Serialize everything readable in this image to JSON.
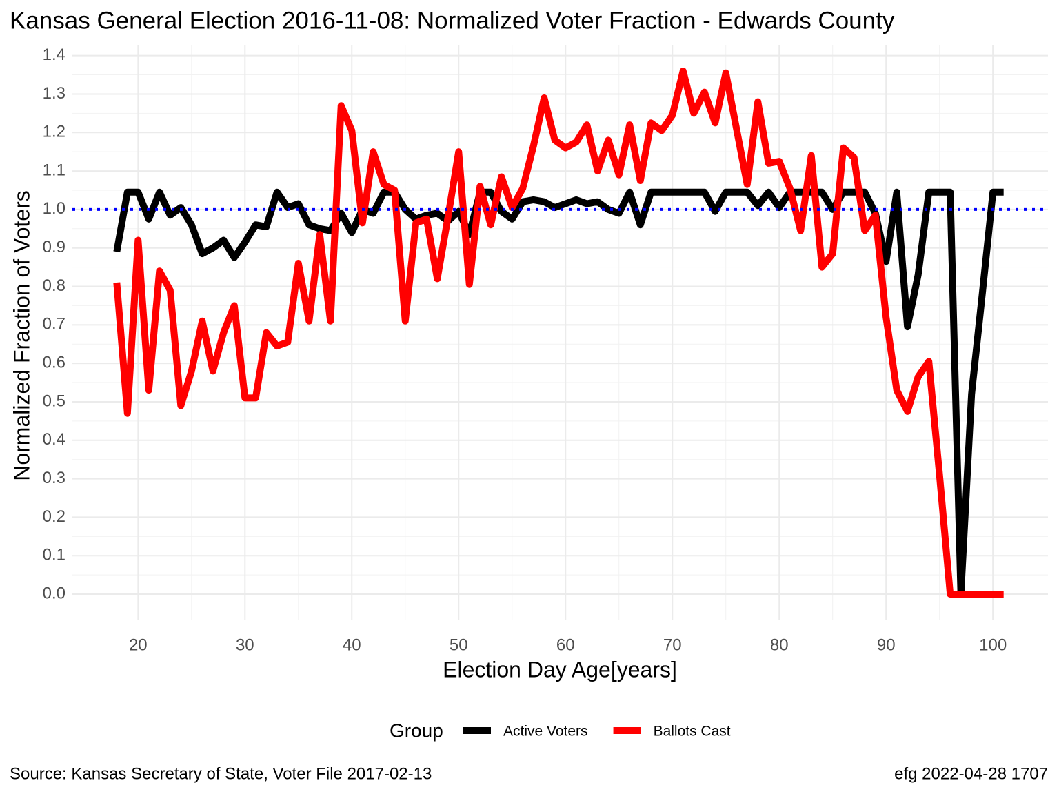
{
  "chart_data": {
    "type": "line",
    "title": "Kansas General Election 2016-11-08:  Normalized Voter Fraction - Edwards County",
    "x_label": "Election Day Age[years]",
    "y_label": "Normalized Fraction of Voters",
    "legend_title": "Group",
    "legend_position": "bottom",
    "caption_left": "Source:  Kansas Secretary of State, Voter File  2017-02-13",
    "caption_right": "efg 2022-04-28 1707",
    "grid": true,
    "x": [
      18,
      19,
      20,
      21,
      22,
      23,
      24,
      25,
      26,
      27,
      28,
      29,
      30,
      31,
      32,
      33,
      34,
      35,
      36,
      37,
      38,
      39,
      40,
      41,
      42,
      43,
      44,
      45,
      46,
      47,
      48,
      49,
      50,
      51,
      52,
      53,
      54,
      55,
      56,
      57,
      58,
      59,
      60,
      61,
      62,
      63,
      64,
      65,
      66,
      67,
      68,
      69,
      70,
      71,
      72,
      73,
      74,
      75,
      76,
      77,
      78,
      79,
      80,
      81,
      82,
      83,
      84,
      85,
      86,
      87,
      88,
      89,
      90,
      91,
      92,
      93,
      94,
      95,
      96,
      97,
      98,
      99,
      100,
      101
    ],
    "series": [
      {
        "name": "Active Voters",
        "color": "#000000",
        "values": [
          0.89,
          1.045,
          1.045,
          0.975,
          1.045,
          0.985,
          1.005,
          0.96,
          0.885,
          0.9,
          0.92,
          0.875,
          0.915,
          0.96,
          0.955,
          1.045,
          1.005,
          1.015,
          0.96,
          0.95,
          0.945,
          0.99,
          0.94,
          1.0,
          0.99,
          1.045,
          1.045,
          1.0,
          0.975,
          0.985,
          0.99,
          0.97,
          0.995,
          0.935,
          1.045,
          1.045,
          0.995,
          0.975,
          1.02,
          1.025,
          1.02,
          1.005,
          1.015,
          1.025,
          1.015,
          1.02,
          1.0,
          0.99,
          1.045,
          0.96,
          1.045,
          1.045,
          1.045,
          1.045,
          1.045,
          1.045,
          0.995,
          1.045,
          1.045,
          1.045,
          1.01,
          1.045,
          1.005,
          1.045,
          1.045,
          1.045,
          1.045,
          1.0,
          1.045,
          1.045,
          1.045,
          0.99,
          0.865,
          1.045,
          0.695,
          0.83,
          1.045,
          1.045,
          1.045,
          0.0,
          0.52,
          0.78,
          1.045,
          1.045
        ]
      },
      {
        "name": "Ballots Cast",
        "color": "#ff0000",
        "values": [
          0.81,
          0.47,
          0.92,
          0.53,
          0.84,
          0.79,
          0.49,
          0.58,
          0.71,
          0.58,
          0.68,
          0.75,
          0.51,
          0.51,
          0.68,
          0.645,
          0.655,
          0.86,
          0.71,
          0.935,
          0.71,
          1.27,
          1.205,
          0.965,
          1.15,
          1.065,
          1.05,
          0.71,
          0.965,
          0.975,
          0.82,
          0.98,
          1.15,
          0.805,
          1.06,
          0.96,
          1.085,
          1.005,
          1.055,
          1.165,
          1.29,
          1.18,
          1.16,
          1.175,
          1.22,
          1.1,
          1.18,
          1.09,
          1.22,
          1.075,
          1.225,
          1.205,
          1.245,
          1.36,
          1.25,
          1.305,
          1.225,
          1.355,
          1.21,
          1.065,
          1.28,
          1.12,
          1.125,
          1.055,
          0.945,
          1.14,
          0.85,
          0.885,
          1.16,
          1.135,
          0.945,
          0.985,
          0.72,
          0.53,
          0.475,
          0.565,
          0.605,
          0.31,
          0.0,
          0.0,
          0.0,
          0.0,
          0.0,
          0.0
        ]
      }
    ],
    "reference_line": {
      "value": 1,
      "color": "#0000ff"
    },
    "xlim": [
      13.85,
      105.15
    ],
    "ylim": [
      -0.068,
      1.428
    ],
    "xticks": [
      20,
      30,
      40,
      50,
      60,
      70,
      80,
      90,
      100
    ],
    "yticks": [
      {
        "value": 0,
        "label": "0.0"
      },
      0.1,
      0.2,
      0.3,
      0.4,
      0.5,
      0.6,
      0.7,
      0.8,
      0.9,
      {
        "value": 1,
        "label": "1.0"
      },
      1.1,
      1.2,
      1.3,
      1.4
    ]
  }
}
